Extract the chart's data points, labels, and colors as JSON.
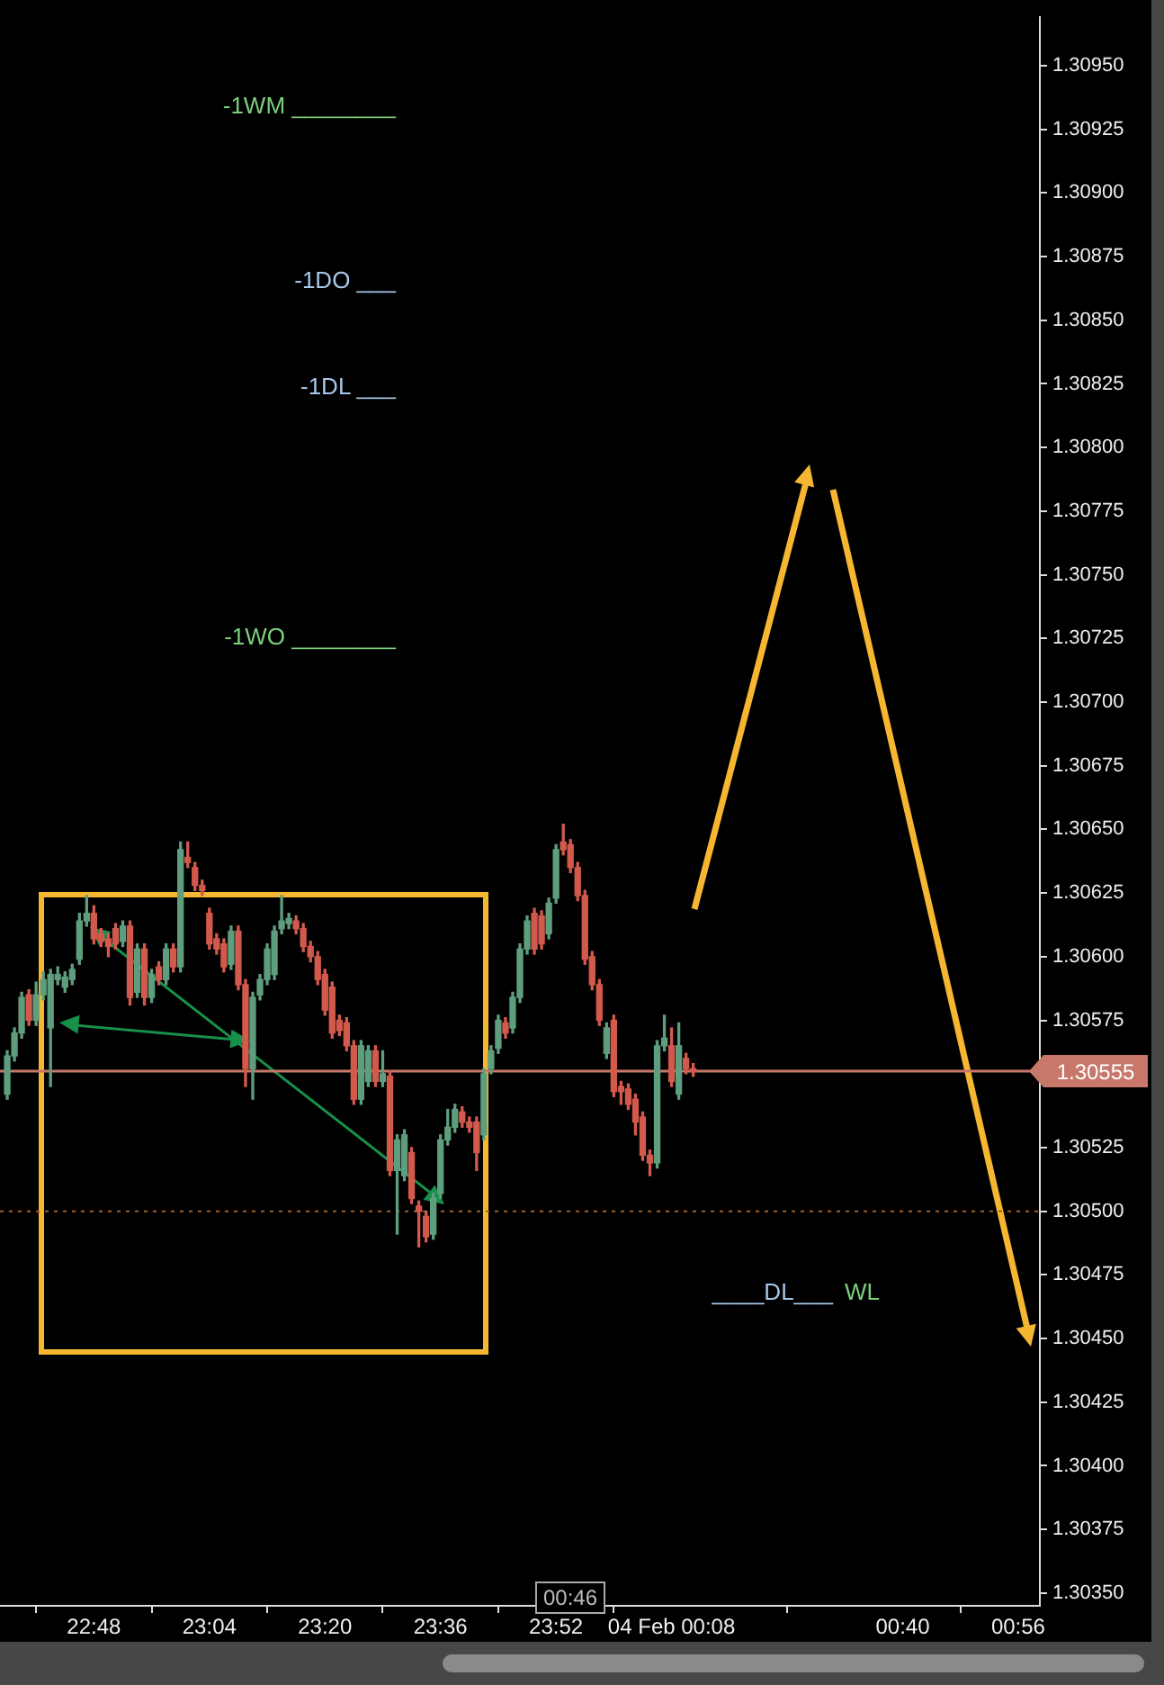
{
  "chart_data": {
    "type": "candlestick",
    "x": [
      "--02-03T22:36",
      "--02-03T22:37",
      "--02-03T22:38",
      "--02-03T22:39",
      "--02-03T22:40",
      "--02-03T22:41",
      "--02-03T22:42",
      "--02-03T22:43",
      "--02-03T22:44",
      "--02-03T22:45",
      "--02-03T22:46",
      "--02-03T22:47",
      "--02-03T22:48",
      "--02-03T22:49",
      "--02-03T22:50",
      "--02-03T22:51",
      "--02-03T22:52",
      "--02-03T22:53",
      "--02-03T22:54",
      "--02-03T22:55",
      "--02-03T22:56",
      "--02-03T22:57",
      "--02-03T22:58",
      "--02-03T22:59",
      "--02-03T23:00",
      "--02-03T23:01",
      "--02-03T23:02",
      "--02-03T23:03",
      "--02-03T23:04",
      "--02-03T23:05",
      "--02-03T23:06",
      "--02-03T23:07",
      "--02-03T23:08",
      "--02-03T23:09",
      "--02-03T23:10",
      "--02-03T23:11",
      "--02-03T23:12",
      "--02-03T23:13",
      "--02-03T23:14",
      "--02-03T23:15",
      "--02-03T23:16",
      "--02-03T23:17",
      "--02-03T23:18",
      "--02-03T23:19",
      "--02-03T23:20",
      "--02-03T23:21",
      "--02-03T23:22",
      "--02-03T23:23",
      "--02-03T23:24",
      "--02-03T23:25",
      "--02-03T23:26",
      "--02-03T23:27",
      "--02-03T23:28",
      "--02-03T23:29",
      "--02-03T23:30",
      "--02-03T23:31",
      "--02-03T23:32",
      "--02-03T23:33",
      "--02-03T23:34",
      "--02-03T23:35",
      "--02-03T23:36",
      "--02-03T23:37",
      "--02-03T23:38",
      "--02-03T23:39",
      "--02-03T23:40",
      "--02-03T23:41",
      "--02-03T23:42",
      "--02-03T23:43",
      "--02-03T23:44",
      "--02-03T23:45",
      "--02-03T23:46",
      "--02-03T23:47",
      "--02-03T23:48",
      "--02-03T23:49",
      "--02-03T23:50",
      "--02-03T23:51",
      "--02-03T23:52",
      "--02-03T23:53",
      "--02-03T23:54",
      "--02-03T23:55",
      "--02-03T23:56",
      "--02-03T23:57",
      "--02-03T23:58",
      "--02-03T23:59",
      "--02-04T00:00",
      "--02-04T00:01",
      "--02-04T00:02",
      "--02-04T00:03",
      "--02-04T00:04",
      "--02-04T00:05",
      "--02-04T00:06",
      "--02-04T00:07",
      "--02-04T00:08",
      "--02-04T00:09",
      "--02-04T00:10",
      "--02-04T00:11"
    ],
    "ohlc": [
      [
        1.30546,
        1.30563,
        1.30544,
        1.30561
      ],
      [
        1.30561,
        1.30572,
        1.30559,
        1.3057
      ],
      [
        1.3057,
        1.30586,
        1.30568,
        1.30584
      ],
      [
        1.30585,
        1.30587,
        1.30573,
        1.30575
      ],
      [
        1.30575,
        1.3059,
        1.30573,
        1.30585
      ],
      [
        1.30585,
        1.30594,
        1.30583,
        1.30591
      ],
      [
        1.30572,
        1.30595,
        1.30549,
        1.30593
      ],
      [
        1.30591,
        1.30596,
        1.30589,
        1.30593
      ],
      [
        1.30588,
        1.30594,
        1.30586,
        1.30592
      ],
      [
        1.30591,
        1.30597,
        1.30589,
        1.30595
      ],
      [
        1.30599,
        1.30617,
        1.30597,
        1.30614
      ],
      [
        1.30614,
        1.30624,
        1.30612,
        1.30617
      ],
      [
        1.30617,
        1.3062,
        1.30605,
        1.30607
      ],
      [
        1.30609,
        1.30611,
        1.30604,
        1.30606
      ],
      [
        1.30607,
        1.30609,
        1.306,
        1.30604
      ],
      [
        1.30611,
        1.30613,
        1.30603,
        1.30605
      ],
      [
        1.30606,
        1.30614,
        1.30604,
        1.30612
      ],
      [
        1.30612,
        1.30614,
        1.30581,
        1.30584
      ],
      [
        1.30586,
        1.30605,
        1.30584,
        1.30603
      ],
      [
        1.30603,
        1.30605,
        1.30581,
        1.30584
      ],
      [
        1.30584,
        1.30595,
        1.30582,
        1.30593
      ],
      [
        1.30596,
        1.30598,
        1.30589,
        1.30591
      ],
      [
        1.30591,
        1.30605,
        1.30589,
        1.30603
      ],
      [
        1.30603,
        1.30605,
        1.30594,
        1.30596
      ],
      [
        1.30596,
        1.30645,
        1.30594,
        1.30642
      ],
      [
        1.30639,
        1.30645,
        1.30635,
        1.30637
      ],
      [
        1.30635,
        1.30637,
        1.30626,
        1.30628
      ],
      [
        1.30628,
        1.3063,
        1.30624,
        1.30626
      ],
      [
        1.30617,
        1.30619,
        1.30603,
        1.30605
      ],
      [
        1.30607,
        1.30609,
        1.30601,
        1.30603
      ],
      [
        1.30605,
        1.30607,
        1.30594,
        1.30596
      ],
      [
        1.30597,
        1.30612,
        1.30595,
        1.3061
      ],
      [
        1.3061,
        1.30612,
        1.30587,
        1.30589
      ],
      [
        1.30589,
        1.30591,
        1.30549,
        1.30556
      ],
      [
        1.30556,
        1.30586,
        1.30544,
        1.30584
      ],
      [
        1.30585,
        1.30593,
        1.30583,
        1.30591
      ],
      [
        1.30591,
        1.30605,
        1.30589,
        1.30603
      ],
      [
        1.30593,
        1.30612,
        1.30591,
        1.3061
      ],
      [
        1.30611,
        1.30624,
        1.30609,
        1.30614
      ],
      [
        1.30613,
        1.30617,
        1.30611,
        1.30615
      ],
      [
        1.30614,
        1.30616,
        1.30609,
        1.30611
      ],
      [
        1.30611,
        1.30613,
        1.30602,
        1.30604
      ],
      [
        1.30604,
        1.30606,
        1.30598,
        1.306
      ],
      [
        1.306,
        1.30602,
        1.30589,
        1.30591
      ],
      [
        1.30593,
        1.30595,
        1.30577,
        1.30579
      ],
      [
        1.30588,
        1.3059,
        1.30568,
        1.3057
      ],
      [
        1.30575,
        1.30577,
        1.30569,
        1.30571
      ],
      [
        1.30574,
        1.30576,
        1.30563,
        1.30565
      ],
      [
        1.30565,
        1.30567,
        1.30542,
        1.30544
      ],
      [
        1.30544,
        1.30567,
        1.30542,
        1.30565
      ],
      [
        1.30551,
        1.30565,
        1.30549,
        1.30563
      ],
      [
        1.30563,
        1.30565,
        1.30549,
        1.30551
      ],
      [
        1.30551,
        1.30563,
        1.30549,
        1.30554
      ],
      [
        1.30553,
        1.30555,
        1.30514,
        1.30516
      ],
      [
        1.30516,
        1.3053,
        1.30491,
        1.30528
      ],
      [
        1.30514,
        1.30532,
        1.30512,
        1.3053
      ],
      [
        1.30523,
        1.30525,
        1.30503,
        1.30505
      ],
      [
        1.30502,
        1.30504,
        1.30486,
        1.305
      ],
      [
        1.30498,
        1.305,
        1.30488,
        1.3049
      ],
      [
        1.30491,
        1.30507,
        1.30489,
        1.30505
      ],
      [
        1.30507,
        1.3053,
        1.30505,
        1.30528
      ],
      [
        1.30528,
        1.3054,
        1.30526,
        1.30533
      ],
      [
        1.30533,
        1.30542,
        1.30531,
        1.3054
      ],
      [
        1.30539,
        1.30541,
        1.30533,
        1.30535
      ],
      [
        1.30535,
        1.30537,
        1.30531,
        1.30533
      ],
      [
        1.30535,
        1.30537,
        1.30516,
        1.30523
      ],
      [
        1.3053,
        1.30556,
        1.30528,
        1.30554
      ],
      [
        1.30556,
        1.30565,
        1.30554,
        1.30563
      ],
      [
        1.30564,
        1.30577,
        1.30562,
        1.30575
      ],
      [
        1.30574,
        1.30576,
        1.30568,
        1.3057
      ],
      [
        1.30572,
        1.30586,
        1.3057,
        1.30584
      ],
      [
        1.30584,
        1.30605,
        1.30582,
        1.30603
      ],
      [
        1.30603,
        1.30616,
        1.30601,
        1.30614
      ],
      [
        1.30617,
        1.30619,
        1.30601,
        1.30603
      ],
      [
        1.30616,
        1.30618,
        1.30603,
        1.30605
      ],
      [
        1.30609,
        1.30623,
        1.30607,
        1.30621
      ],
      [
        1.30623,
        1.30644,
        1.30621,
        1.30642
      ],
      [
        1.30645,
        1.30652,
        1.3064,
        1.30642
      ],
      [
        1.30644,
        1.30646,
        1.30633,
        1.30635
      ],
      [
        1.30635,
        1.30637,
        1.30622,
        1.30624
      ],
      [
        1.30624,
        1.30626,
        1.30597,
        1.30599
      ],
      [
        1.306,
        1.30602,
        1.30587,
        1.30589
      ],
      [
        1.30589,
        1.30591,
        1.30573,
        1.30575
      ],
      [
        1.30562,
        1.30574,
        1.3056,
        1.30572
      ],
      [
        1.30575,
        1.30577,
        1.30545,
        1.30547
      ],
      [
        1.30549,
        1.30551,
        1.30542,
        1.30547
      ],
      [
        1.30548,
        1.3055,
        1.3054,
        1.30542
      ],
      [
        1.30544,
        1.30546,
        1.3053,
        1.30535
      ],
      [
        1.30537,
        1.30539,
        1.3052,
        1.30522
      ],
      [
        1.30522,
        1.30524,
        1.30514,
        1.30519
      ],
      [
        1.30519,
        1.30567,
        1.30517,
        1.30565
      ],
      [
        1.30565,
        1.30577,
        1.30563,
        1.30568
      ],
      [
        1.30565,
        1.30572,
        1.30549,
        1.30551
      ],
      [
        1.30546,
        1.30574,
        1.30544,
        1.30565
      ],
      [
        1.3056,
        1.30562,
        1.30554,
        1.30556
      ],
      [
        1.30556,
        1.30558,
        1.30553,
        1.30555
      ]
    ],
    "colors": [
      "#5e9e7e",
      "#5e9e7e",
      "#5e9e7e",
      "#d25a4c",
      "#5e9e7e",
      "#5e9e7e",
      "#5e9e7e",
      "#5e9e7e",
      "#5e9e7e",
      "#5e9e7e",
      "#5e9e7e",
      "#5e9e7e",
      "#d25a4c",
      "#d25a4c",
      "#d25a4c",
      "#d25a4c",
      "#5e9e7e",
      "#d25a4c",
      "#5e9e7e",
      "#d25a4c",
      "#5e9e7e",
      "#d25a4c",
      "#5e9e7e",
      "#d25a4c",
      "#5e9e7e",
      "#d25a4c",
      "#d25a4c",
      "#d25a4c",
      "#d25a4c",
      "#d25a4c",
      "#d25a4c",
      "#5e9e7e",
      "#d25a4c",
      "#d25a4c",
      "#5e9e7e",
      "#5e9e7e",
      "#5e9e7e",
      "#5e9e7e",
      "#5e9e7e",
      "#5e9e7e",
      "#d25a4c",
      "#d25a4c",
      "#d25a4c",
      "#d25a4c",
      "#d25a4c",
      "#d25a4c",
      "#d25a4c",
      "#d25a4c",
      "#d25a4c",
      "#5e9e7e",
      "#5e9e7e",
      "#d25a4c",
      "#5e9e7e",
      "#d25a4c",
      "#5e9e7e",
      "#5e9e7e",
      "#d25a4c",
      "#d25a4c",
      "#d25a4c",
      "#5e9e7e",
      "#5e9e7e",
      "#5e9e7e",
      "#5e9e7e",
      "#d25a4c",
      "#d25a4c",
      "#d25a4c",
      "#5e9e7e",
      "#5e9e7e",
      "#5e9e7e",
      "#d25a4c",
      "#5e9e7e",
      "#5e9e7e",
      "#5e9e7e",
      "#d25a4c",
      "#d25a4c",
      "#5e9e7e",
      "#5e9e7e",
      "#d25a4c",
      "#d25a4c",
      "#d25a4c",
      "#d25a4c",
      "#d25a4c",
      "#d25a4c",
      "#5e9e7e",
      "#d25a4c",
      "#d25a4c",
      "#d25a4c",
      "#d25a4c",
      "#d25a4c",
      "#d25a4c",
      "#5e9e7e",
      "#5e9e7e",
      "#d25a4c",
      "#5e9e7e",
      "#d25a4c",
      "#d25a4c"
    ],
    "xlim": [
      "--02-03T22:35",
      "--02-04T00:59"
    ],
    "xticks": [
      {
        "value": "--02-03T22:48",
        "label": "22:48"
      },
      {
        "value": "--02-03T23:04",
        "label": "23:04"
      },
      {
        "value": "--02-03T23:20",
        "label": "23:20"
      },
      {
        "value": "--02-03T23:36",
        "label": "23:36"
      },
      {
        "value": "--02-03T23:52",
        "label": "23:52"
      },
      {
        "value": "--02-04T00:08",
        "label": "04 Feb 00:08"
      },
      {
        "value": "--02-04T00:40",
        "label": "00:40"
      },
      {
        "value": "--02-04T00:56",
        "label": "00:56"
      }
    ],
    "ylim": [
      1.30345,
      1.30969
    ],
    "yticks": [
      {
        "value": 1.3035,
        "label": "1.30350"
      },
      1.30375,
      {
        "value": 1.304,
        "label": "1.30400"
      },
      1.30425,
      {
        "value": 1.3045,
        "label": "1.30450"
      },
      1.30475,
      {
        "value": 1.305,
        "label": "1.30500"
      },
      1.30525,
      1.30575,
      {
        "value": 1.306,
        "label": "1.30600"
      },
      1.30625,
      {
        "value": 1.3065,
        "label": "1.30650"
      },
      1.30675,
      {
        "value": 1.307,
        "label": "1.30700"
      },
      1.30725,
      {
        "value": 1.3075,
        "label": "1.30750"
      },
      1.30775,
      {
        "value": 1.308,
        "label": "1.30800"
      },
      1.30825,
      {
        "value": 1.3085,
        "label": "1.30850"
      },
      1.30875,
      {
        "value": 1.309,
        "label": "1.30900"
      },
      1.30925,
      {
        "value": 1.3095,
        "label": "1.30950"
      }
    ],
    "ref_lines": [
      {
        "axis": "y",
        "value": 1.30555,
        "label": "1.30555",
        "color": "#c8786a"
      },
      {
        "axis": "y",
        "value": 1.305,
        "color": "#a0602a",
        "line_style": "dotted"
      }
    ],
    "annotations": [
      "-1WM ________",
      "-1DO ___",
      "-1DL ___",
      "-1WO ________",
      "____DL___",
      "WL",
      "00:46"
    ],
    "legend": false,
    "grid": false
  }
}
